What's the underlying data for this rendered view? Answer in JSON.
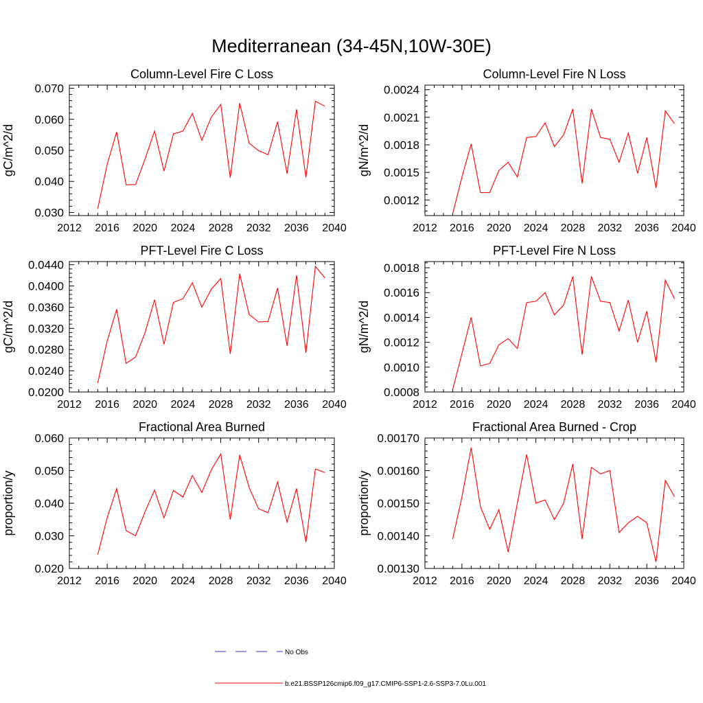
{
  "figure": {
    "title": "Mediterranean (34-45N,10W-30E)"
  },
  "legend": {
    "entries": [
      {
        "label": "No Obs",
        "color": "#3333cc",
        "style": "dashed"
      },
      {
        "label": "b.e21.BSSP126cmip6.f09_g17.CMIP6-SSP1-2.6-SSP3-7.0Lu.001",
        "color": "#ff0000",
        "style": "solid"
      }
    ]
  },
  "chart_data": [
    {
      "type": "line",
      "title": "Column-Level Fire C Loss",
      "ylabel": "gC/m^2/d",
      "xlim": [
        2012,
        2040
      ],
      "ylim": [
        0.029,
        0.071
      ],
      "xticks": [
        2012,
        2016,
        2020,
        2024,
        2028,
        2032,
        2036,
        2040
      ],
      "yticks": [
        0.03,
        0.04,
        0.05,
        0.06,
        0.07
      ],
      "ytick_labels": [
        "0.030",
        "0.040",
        "0.050",
        "0.060",
        "0.070"
      ],
      "grid": false,
      "series": [
        {
          "color": "#ff0000",
          "x": [
            2015,
            2016,
            2017,
            2018,
            2019,
            2020,
            2021,
            2022,
            2023,
            2024,
            2025,
            2026,
            2027,
            2028,
            2029,
            2030,
            2031,
            2032,
            2033,
            2034,
            2035,
            2036,
            2037,
            2038,
            2039
          ],
          "values": [
            0.0313,
            0.0455,
            0.0559,
            0.0389,
            0.039,
            0.0472,
            0.0562,
            0.0433,
            0.0553,
            0.0562,
            0.0619,
            0.0532,
            0.0607,
            0.0648,
            0.0412,
            0.0652,
            0.0523,
            0.0499,
            0.0486,
            0.0592,
            0.0425,
            0.0632,
            0.0413,
            0.0658,
            0.0642
          ]
        }
      ]
    },
    {
      "type": "line",
      "title": "Column-Level Fire N Loss",
      "ylabel": "gN/m^2/d",
      "xlim": [
        2012,
        2040
      ],
      "ylim": [
        0.00103,
        0.00245
      ],
      "xticks": [
        2012,
        2016,
        2020,
        2024,
        2028,
        2032,
        2036,
        2040
      ],
      "yticks": [
        0.0012,
        0.0015,
        0.0018,
        0.0021,
        0.0024
      ],
      "ytick_labels": [
        "0.0012",
        "0.0015",
        "0.0018",
        "0.0021",
        "0.0024"
      ],
      "grid": false,
      "series": [
        {
          "color": "#ff0000",
          "x": [
            2015,
            2016,
            2017,
            2018,
            2019,
            2020,
            2021,
            2022,
            2023,
            2024,
            2025,
            2026,
            2027,
            2028,
            2029,
            2030,
            2031,
            2032,
            2033,
            2034,
            2035,
            2036,
            2037,
            2038,
            2039
          ],
          "values": [
            0.00105,
            0.00145,
            0.00181,
            0.00128,
            0.00128,
            0.00152,
            0.00161,
            0.00145,
            0.00188,
            0.00189,
            0.00204,
            0.00178,
            0.00191,
            0.00219,
            0.00138,
            0.00219,
            0.00188,
            0.00186,
            0.00161,
            0.00193,
            0.00149,
            0.00188,
            0.00133,
            0.00217,
            0.00203
          ]
        }
      ]
    },
    {
      "type": "line",
      "title": "PFT-Level Fire C Loss",
      "ylabel": "gC/m^2/d",
      "xlim": [
        2012,
        2040
      ],
      "ylim": [
        0.02,
        0.0446
      ],
      "xticks": [
        2012,
        2016,
        2020,
        2024,
        2028,
        2032,
        2036,
        2040
      ],
      "yticks": [
        0.02,
        0.024,
        0.028,
        0.032,
        0.036,
        0.04,
        0.044
      ],
      "ytick_labels": [
        "0.0200",
        "0.0240",
        "0.0280",
        "0.0320",
        "0.0360",
        "0.0400",
        "0.0440"
      ],
      "grid": false,
      "series": [
        {
          "color": "#ff0000",
          "x": [
            2015,
            2016,
            2017,
            2018,
            2019,
            2020,
            2021,
            2022,
            2023,
            2024,
            2025,
            2026,
            2027,
            2028,
            2029,
            2030,
            2031,
            2032,
            2033,
            2034,
            2035,
            2036,
            2037,
            2038,
            2039
          ],
          "values": [
            0.0217,
            0.0296,
            0.0356,
            0.0254,
            0.0266,
            0.0312,
            0.0374,
            0.029,
            0.0369,
            0.0376,
            0.0406,
            0.036,
            0.0394,
            0.0414,
            0.0272,
            0.0423,
            0.0346,
            0.0332,
            0.0333,
            0.0396,
            0.0287,
            0.042,
            0.0274,
            0.0437,
            0.0415
          ]
        }
      ]
    },
    {
      "type": "line",
      "title": "PFT-Level Fire N Loss",
      "ylabel": "gN/m^2/d",
      "xlim": [
        2012,
        2040
      ],
      "ylim": [
        0.0008,
        0.00185
      ],
      "xticks": [
        2012,
        2016,
        2020,
        2024,
        2028,
        2032,
        2036,
        2040
      ],
      "yticks": [
        0.0008,
        0.001,
        0.0012,
        0.0014,
        0.0016,
        0.0018
      ],
      "ytick_labels": [
        "0.0008",
        "0.0010",
        "0.0012",
        "0.0014",
        "0.0016",
        "0.0018"
      ],
      "grid": false,
      "series": [
        {
          "color": "#ff0000",
          "x": [
            2015,
            2016,
            2017,
            2018,
            2019,
            2020,
            2021,
            2022,
            2023,
            2024,
            2025,
            2026,
            2027,
            2028,
            2029,
            2030,
            2031,
            2032,
            2033,
            2034,
            2035,
            2036,
            2037,
            2038,
            2039
          ],
          "values": [
            0.00082,
            0.00111,
            0.0014,
            0.00101,
            0.00103,
            0.00118,
            0.00123,
            0.00115,
            0.00152,
            0.00153,
            0.0016,
            0.00142,
            0.0015,
            0.00173,
            0.0011,
            0.00173,
            0.00153,
            0.00152,
            0.00129,
            0.00154,
            0.0012,
            0.00145,
            0.00104,
            0.0017,
            0.00155
          ]
        }
      ]
    },
    {
      "type": "line",
      "title": "Fractional Area Burned",
      "ylabel": "proportion/y",
      "xlim": [
        2012,
        2040
      ],
      "ylim": [
        0.02,
        0.06
      ],
      "xticks": [
        2012,
        2016,
        2020,
        2024,
        2028,
        2032,
        2036,
        2040
      ],
      "yticks": [
        0.02,
        0.03,
        0.04,
        0.05,
        0.06
      ],
      "ytick_labels": [
        "0.020",
        "0.030",
        "0.040",
        "0.050",
        "0.060"
      ],
      "grid": false,
      "series": [
        {
          "color": "#ff0000",
          "x": [
            2015,
            2016,
            2017,
            2018,
            2019,
            2020,
            2021,
            2022,
            2023,
            2024,
            2025,
            2026,
            2027,
            2028,
            2029,
            2030,
            2031,
            2032,
            2033,
            2034,
            2035,
            2036,
            2037,
            2038,
            2039
          ],
          "values": [
            0.0243,
            0.0355,
            0.0445,
            0.0316,
            0.03,
            0.0374,
            0.044,
            0.0355,
            0.0439,
            0.0419,
            0.0485,
            0.0433,
            0.0502,
            0.0551,
            0.035,
            0.0548,
            0.0448,
            0.0383,
            0.0371,
            0.0465,
            0.0342,
            0.0445,
            0.0281,
            0.0505,
            0.0494
          ]
        }
      ]
    },
    {
      "type": "line",
      "title": "Fractional Area Burned - Crop",
      "ylabel": "proportion/y",
      "xlim": [
        2012,
        2040
      ],
      "ylim": [
        0.0013,
        0.0017
      ],
      "xticks": [
        2012,
        2016,
        2020,
        2024,
        2028,
        2032,
        2036,
        2040
      ],
      "yticks": [
        0.0013,
        0.0014,
        0.0015,
        0.0016,
        0.0017
      ],
      "ytick_labels": [
        "0.00130",
        "0.00140",
        "0.00150",
        "0.00160",
        "0.00170"
      ],
      "grid": false,
      "series": [
        {
          "color": "#ff0000",
          "x": [
            2015,
            2016,
            2017,
            2018,
            2019,
            2020,
            2021,
            2022,
            2023,
            2024,
            2025,
            2026,
            2027,
            2028,
            2029,
            2030,
            2031,
            2032,
            2033,
            2034,
            2035,
            2036,
            2037,
            2038,
            2039
          ],
          "values": [
            0.00139,
            0.00152,
            0.00167,
            0.00149,
            0.00142,
            0.00148,
            0.00135,
            0.0015,
            0.00165,
            0.0015,
            0.00151,
            0.00145,
            0.0015,
            0.00162,
            0.00139,
            0.00161,
            0.00159,
            0.0016,
            0.00141,
            0.00144,
            0.00146,
            0.00144,
            0.00132,
            0.00157,
            0.00152
          ]
        }
      ]
    }
  ]
}
